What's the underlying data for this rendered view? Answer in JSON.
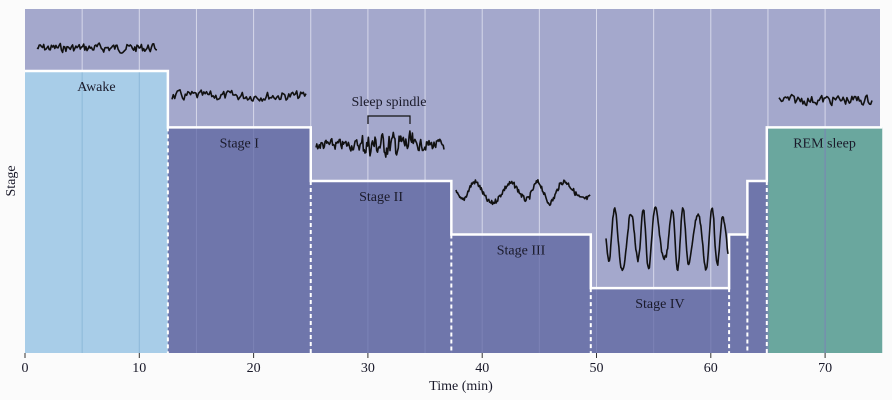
{
  "diagram": {
    "ylabel": "Stage",
    "xlabel": "Time (min)",
    "x_ticks": [
      "0",
      "10",
      "20",
      "30",
      "40",
      "50",
      "60",
      "70"
    ],
    "x_range_min": [
      0,
      75
    ],
    "stages": [
      {
        "label": "Awake",
        "start": 0,
        "end": 12.5,
        "level": 1.0,
        "color": "#a8cde8"
      },
      {
        "label": "Stage I",
        "start": 12.5,
        "end": 25,
        "level": 0.8,
        "color": "#6f76ab"
      },
      {
        "label": "Stage II",
        "start": 25,
        "end": 37.3,
        "level": 0.61,
        "color": "#6f76ab"
      },
      {
        "label": "Stage III",
        "start": 37.3,
        "end": 49.5,
        "level": 0.42,
        "color": "#6f76ab"
      },
      {
        "label": "Stage IV",
        "start": 49.5,
        "end": 61.6,
        "level": 0.23,
        "color": "#6f76ab"
      },
      {
        "label": "",
        "start": 61.6,
        "end": 63.2,
        "level": 0.42,
        "color": "#6f76ab"
      },
      {
        "label": "",
        "start": 63.2,
        "end": 64.9,
        "level": 0.61,
        "color": "#6f76ab"
      },
      {
        "label": "REM sleep",
        "start": 64.9,
        "end": 75,
        "level": 0.8,
        "color": "#6aa79e"
      }
    ],
    "annotation": "Sleep spindle",
    "colors": {
      "background": "#a4a8cc",
      "awake": "#a8cde8",
      "sleep": "#6f76ab",
      "rem": "#6aa79e",
      "trace": "#111111",
      "outline": "#ffffff"
    }
  }
}
